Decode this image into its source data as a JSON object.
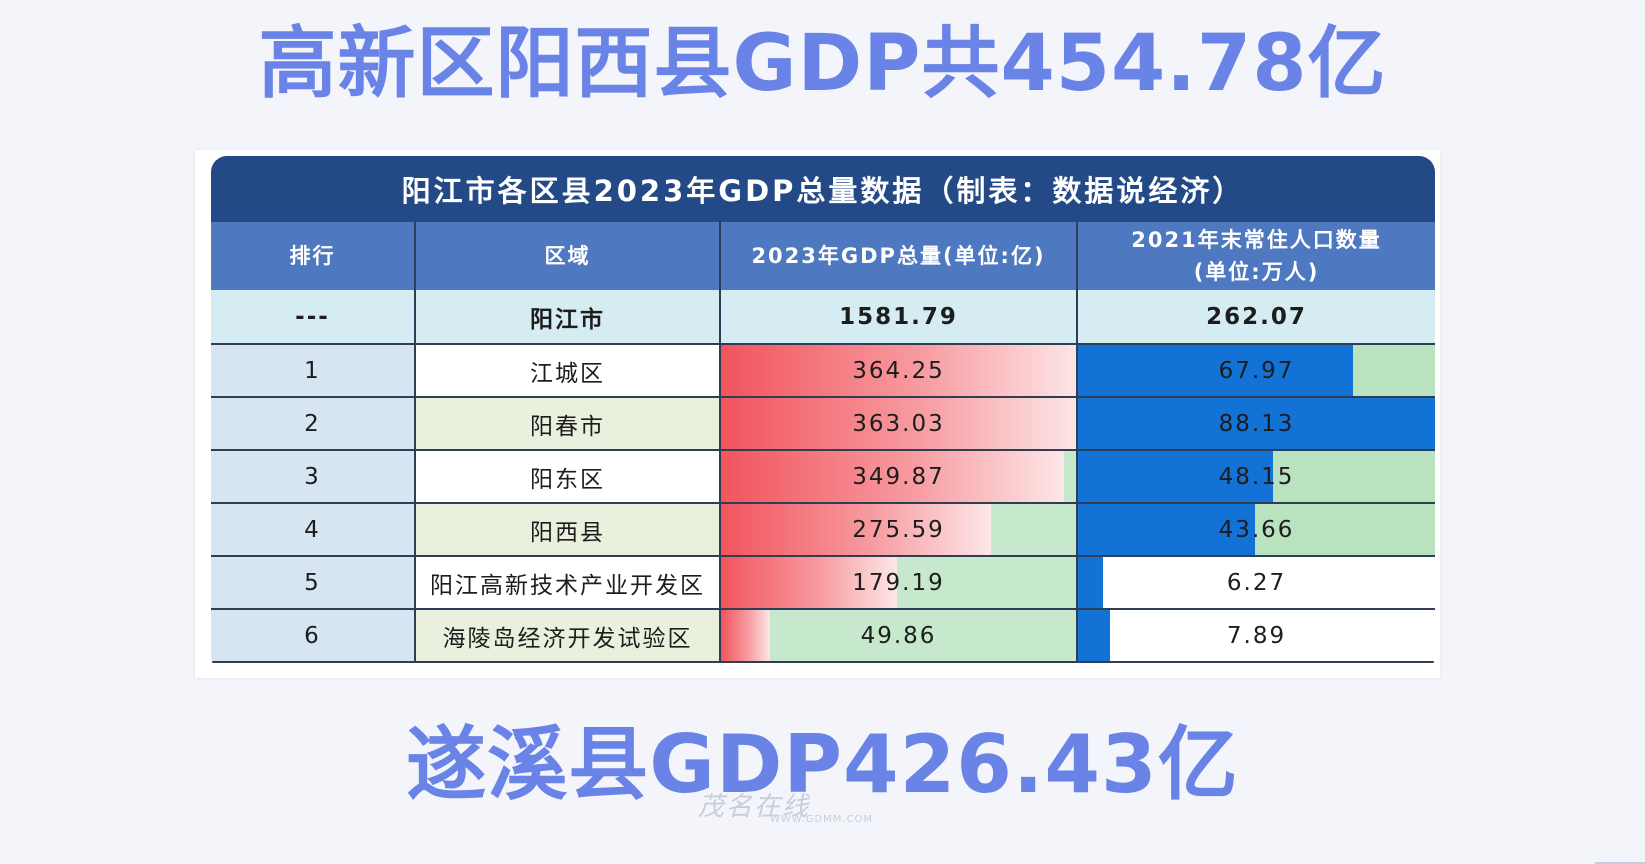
{
  "headline_top": "高新区阳西县GDP共454.78亿",
  "headline_bottom": "遂溪县GDP426.43亿",
  "table": {
    "title": "阳江市各区县2023年GDP总量数据（制表：数据说经济）",
    "headers": {
      "rank": "排行",
      "region": "区域",
      "gdp": "2023年GDP总量(单位:亿)",
      "pop_line1": "2021年末常住人口数量",
      "pop_line2": "(单位:万人)"
    },
    "total_row": {
      "rank": "---",
      "region": "阳江市",
      "gdp": "1581.79",
      "pop": "262.07"
    },
    "rows": [
      {
        "rank": "1",
        "region": "江城区",
        "gdp": "364.25",
        "pop": "67.97",
        "gdp_fill": 1.0,
        "pop_fill": 0.77
      },
      {
        "rank": "2",
        "region": "阳春市",
        "gdp": "363.03",
        "pop": "88.13",
        "gdp_fill": 0.997,
        "pop_fill": 1.0
      },
      {
        "rank": "3",
        "region": "阳东区",
        "gdp": "349.87",
        "pop": "48.15",
        "gdp_fill": 0.96,
        "pop_fill": 0.546
      },
      {
        "rank": "4",
        "region": "阳西县",
        "gdp": "275.59",
        "pop": "43.66",
        "gdp_fill": 0.757,
        "pop_fill": 0.495
      },
      {
        "rank": "5",
        "region": "阳江高新技术产业开发区",
        "gdp": "179.19",
        "pop": "6.27",
        "gdp_fill": 0.492,
        "pop_fill": 0.071
      },
      {
        "rank": "6",
        "region": "海陵岛经济开发试验区",
        "gdp": "49.86",
        "pop": "7.89",
        "gdp_fill": 0.137,
        "pop_fill": 0.09
      }
    ]
  },
  "colors": {
    "headline": "#6a83e6",
    "title_bar": "#234a86",
    "header_row": "#4e79c1",
    "gdp_bar": "#f2545d",
    "pop_bar": "#1372d6"
  },
  "watermark": {
    "text": "茂名在线",
    "sub": "WWW.GDMM.COM"
  }
}
